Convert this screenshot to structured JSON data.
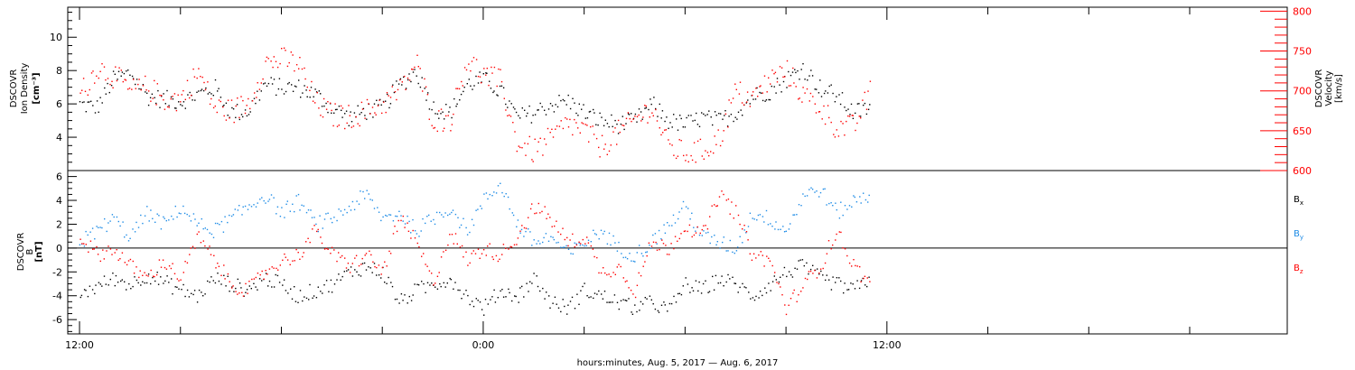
{
  "chart_data": [
    {
      "type": "scatter",
      "panel": "plasma",
      "ylabel_lines": [
        "DSCOVR",
        "Ion Density",
        "[cm⁻³]"
      ],
      "y2label_lines": [
        "DSCOVR",
        "Velocity",
        "[km/s]"
      ],
      "ylim": [
        2,
        11.8
      ],
      "y2lim": [
        600,
        805
      ],
      "yticks": [
        4,
        6,
        8,
        10
      ],
      "y2ticks": [
        600,
        650,
        700,
        750,
        800
      ],
      "colors": {
        "density": "#000000",
        "velocity": "#ff0000"
      },
      "series": [
        {
          "key": "density",
          "x_hours": [
            0,
            0.5,
            1,
            1.5,
            2,
            2.5,
            3,
            3.5,
            4,
            4.5,
            5,
            5.5,
            6,
            6.5,
            7,
            7.5,
            8,
            8.5,
            9,
            9.5,
            10,
            10.5,
            11,
            11.5,
            12,
            12.5,
            13,
            13.5,
            14,
            14.5,
            15,
            15.5,
            16,
            16.5,
            17,
            17.5,
            18,
            18.5,
            19,
            19.5,
            20,
            20.5,
            21,
            21.5,
            22,
            22.5,
            23,
            23.5
          ],
          "values": [
            6.0,
            5.8,
            7.5,
            7.9,
            6.5,
            6.3,
            6.2,
            6.6,
            7.0,
            5.5,
            5.6,
            7.2,
            7.0,
            7.0,
            6.6,
            5.8,
            5.2,
            5.6,
            5.8,
            7.2,
            8.0,
            5.8,
            5.5,
            7.2,
            7.5,
            6.8,
            5.2,
            5.5,
            6.0,
            6.2,
            5.5,
            5.0,
            4.8,
            5.0,
            6.0,
            5.0,
            4.8,
            5.2,
            5.0,
            5.5,
            6.5,
            6.8,
            7.5,
            8.2,
            7.0,
            6.5,
            5.5,
            5.8
          ]
        },
        {
          "key": "velocity",
          "x_hours": [
            0,
            0.5,
            1,
            1.5,
            2,
            2.5,
            3,
            3.5,
            4,
            4.5,
            5,
            5.5,
            6,
            6.5,
            7,
            7.5,
            8,
            8.5,
            9,
            9.5,
            10,
            10.5,
            11,
            11.5,
            12,
            12.5,
            13,
            13.5,
            14,
            14.5,
            15,
            15.5,
            16,
            16.5,
            17,
            17.5,
            18,
            18.5,
            19,
            19.5,
            20,
            20.5,
            21,
            21.5,
            22,
            22.5,
            23,
            23.5
          ],
          "values": [
            695,
            730,
            720,
            700,
            705,
            690,
            690,
            725,
            680,
            675,
            685,
            735,
            740,
            735,
            685,
            670,
            668,
            675,
            685,
            700,
            735,
            665,
            665,
            740,
            720,
            712,
            635,
            625,
            640,
            660,
            650,
            630,
            648,
            665,
            680,
            630,
            622,
            625,
            640,
            700,
            690,
            715,
            725,
            695,
            680,
            655,
            655,
            700
          ]
        }
      ]
    },
    {
      "type": "scatter",
      "panel": "magnetic",
      "ylabel_lines": [
        "DSCOVR",
        "B",
        "[nT]"
      ],
      "ylim": [
        -7.2,
        6.5
      ],
      "yticks": [
        -6,
        -4,
        -2,
        0,
        2,
        4,
        6
      ],
      "zero_line": true,
      "legend": [
        {
          "label": "B",
          "sub": "x",
          "color": "#000000"
        },
        {
          "label": "B",
          "sub": "y",
          "color": "#1e8ce6"
        },
        {
          "label": "B",
          "sub": "z",
          "color": "#ff0000"
        }
      ],
      "series": [
        {
          "key": "Bx",
          "color": "#000000",
          "x_hours": [
            0,
            0.5,
            1,
            1.5,
            2,
            2.5,
            3,
            3.5,
            4,
            4.5,
            5,
            5.5,
            6,
            6.5,
            7,
            7.5,
            8,
            8.5,
            9,
            9.5,
            10,
            10.5,
            11,
            11.5,
            12,
            12.5,
            13,
            13.5,
            14,
            14.5,
            15,
            15.5,
            16,
            16.5,
            17,
            17.5,
            18,
            18.5,
            19,
            19.5,
            20,
            20.5,
            21,
            21.5,
            22,
            22.5,
            23,
            23.5
          ],
          "values": [
            -3.8,
            -3.2,
            -2.5,
            -3.0,
            -2.2,
            -2.8,
            -3.5,
            -4.0,
            -2.5,
            -3.0,
            -3.5,
            -2.5,
            -3.0,
            -4.0,
            -3.5,
            -3.0,
            -2.0,
            -1.5,
            -2.0,
            -4.5,
            -3.5,
            -3.0,
            -2.5,
            -4.0,
            -5.0,
            -3.5,
            -4.0,
            -2.5,
            -4.5,
            -5.0,
            -3.5,
            -4.0,
            -4.5,
            -5.0,
            -4.5,
            -5.2,
            -3.0,
            -3.5,
            -2.5,
            -3.0,
            -4.0,
            -3.0,
            -2.0,
            -1.5,
            -2.5,
            -3.0,
            -3.5,
            -2.5
          ]
        },
        {
          "key": "By",
          "color": "#1e8ce6",
          "x_hours": [
            0,
            0.5,
            1,
            1.5,
            2,
            2.5,
            3,
            3.5,
            4,
            4.5,
            5,
            5.5,
            6,
            6.5,
            7,
            7.5,
            8,
            8.5,
            9,
            9.5,
            10,
            10.5,
            11,
            11.5,
            12,
            12.5,
            13,
            13.5,
            14,
            14.5,
            15,
            15.5,
            16,
            16.5,
            17,
            17.5,
            18,
            18.5,
            19,
            19.5,
            20,
            20.5,
            21,
            21.5,
            22,
            22.5,
            23,
            23.5
          ],
          "values": [
            0.5,
            1.5,
            2.5,
            1.0,
            3.0,
            2.0,
            3.5,
            2.0,
            1.5,
            2.5,
            3.5,
            4.5,
            3.0,
            4.0,
            2.0,
            2.5,
            3.5,
            4.5,
            2.5,
            3.0,
            1.5,
            2.5,
            3.5,
            1.5,
            4.0,
            5.5,
            2.0,
            0.5,
            1.0,
            -0.5,
            0.5,
            1.5,
            0.0,
            -0.5,
            0.5,
            2.0,
            3.5,
            1.0,
            0.5,
            0.0,
            3.0,
            2.5,
            1.5,
            4.5,
            5.0,
            3.0,
            4.0,
            4.5
          ]
        },
        {
          "key": "Bz",
          "color": "#ff0000",
          "x_hours": [
            0,
            0.5,
            1,
            1.5,
            2,
            2.5,
            3,
            3.5,
            4,
            4.5,
            5,
            5.5,
            6,
            6.5,
            7,
            7.5,
            8,
            8.5,
            9,
            9.5,
            10,
            10.5,
            11,
            11.5,
            12,
            12.5,
            13,
            13.5,
            14,
            14.5,
            15,
            15.5,
            16,
            16.5,
            17,
            17.5,
            18,
            18.5,
            19,
            19.5,
            20,
            20.5,
            21,
            21.5,
            22,
            22.5,
            23,
            23.5
          ],
          "values": [
            1.0,
            -0.5,
            0.0,
            -1.5,
            -2.5,
            -1.0,
            -2.5,
            1.0,
            -1.0,
            -3.0,
            -3.5,
            -2.0,
            -1.0,
            -0.5,
            1.5,
            -0.5,
            -1.5,
            -0.5,
            -2.0,
            2.5,
            0.5,
            -3.0,
            1.5,
            -1.0,
            0.0,
            -0.5,
            1.0,
            3.5,
            2.5,
            0.5,
            1.0,
            -2.0,
            -1.5,
            -3.5,
            0.5,
            0.0,
            2.0,
            1.0,
            4.5,
            3.0,
            -0.5,
            -1.0,
            -5.0,
            -3.0,
            -1.5,
            1.5,
            -1.5,
            -3.0
          ]
        }
      ]
    }
  ],
  "x_axis": {
    "range_hours": [
      -0.35,
      35.9
    ],
    "ticks": [
      {
        "label": "12:00",
        "h": 0
      },
      {
        "label": "0:00",
        "h": 12
      },
      {
        "label": "12:00",
        "h": 24
      }
    ],
    "xlabel": "hours:minutes, Aug.  5, 2017 — Aug.  6, 2017"
  }
}
